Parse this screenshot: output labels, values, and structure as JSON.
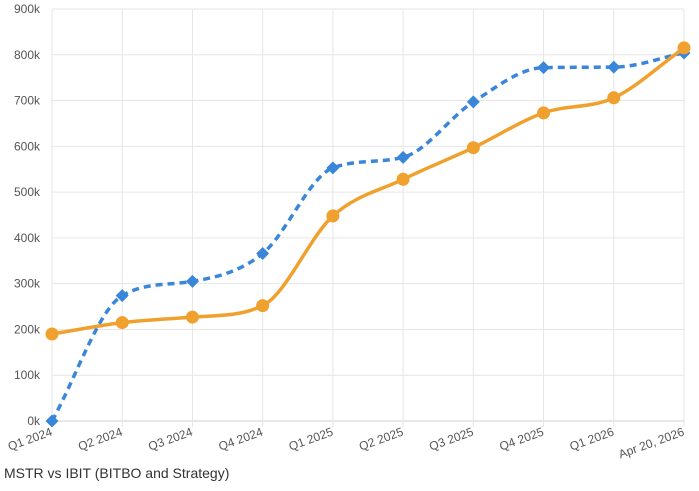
{
  "caption": "MSTR vs IBIT (BITBO and Strategy)",
  "chart_data": {
    "type": "line",
    "title": "",
    "xlabel": "",
    "ylabel": "",
    "categories": [
      "Q1 2024",
      "Q2 2024",
      "Q3 2024",
      "Q4 2024",
      "Q1 2025",
      "Q2 2025",
      "Q3 2025",
      "Q4 2025",
      "Q1 2026",
      "Apr 20, 2026"
    ],
    "ylim": [
      0,
      900000
    ],
    "yticks": [
      0,
      100000,
      200000,
      300000,
      400000,
      500000,
      600000,
      700000,
      800000,
      900000
    ],
    "ytick_labels": [
      "0k",
      "100k",
      "200k",
      "300k",
      "400k",
      "500k",
      "600k",
      "700k",
      "800k",
      "900k"
    ],
    "grid": true,
    "series": [
      {
        "color": "#3a86d8",
        "style": "dashed",
        "marker": "diamond",
        "values": [
          0,
          274000,
          305000,
          366000,
          553000,
          576000,
          697000,
          772000,
          773000,
          804000
        ]
      },
      {
        "color": "#f0a02c",
        "style": "solid",
        "marker": "circle",
        "values": [
          190000,
          215000,
          227000,
          252000,
          448000,
          528000,
          597000,
          673000,
          706000,
          815000
        ]
      }
    ]
  }
}
